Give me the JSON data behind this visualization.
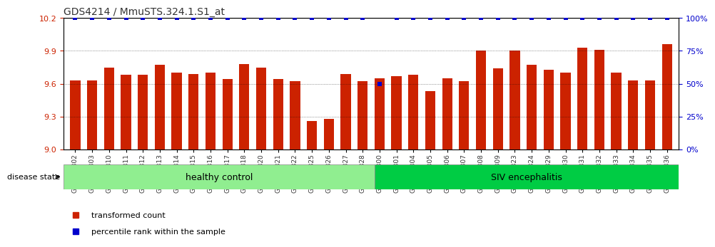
{
  "title": "GDS4214 / MmuSTS.324.1.S1_at",
  "samples": [
    "GSM347802",
    "GSM347803",
    "GSM347810",
    "GSM347811",
    "GSM347812",
    "GSM347813",
    "GSM347814",
    "GSM347815",
    "GSM347816",
    "GSM347817",
    "GSM347818",
    "GSM347820",
    "GSM347821",
    "GSM347822",
    "GSM347825",
    "GSM347826",
    "GSM347827",
    "GSM347828",
    "GSM347800",
    "GSM347801",
    "GSM347804",
    "GSM347805",
    "GSM347806",
    "GSM347807",
    "GSM347808",
    "GSM347809",
    "GSM347823",
    "GSM347824",
    "GSM347829",
    "GSM347830",
    "GSM347831",
    "GSM347832",
    "GSM347833",
    "GSM347834",
    "GSM347835",
    "GSM347836"
  ],
  "bar_values": [
    9.63,
    9.63,
    9.75,
    9.68,
    9.68,
    9.77,
    9.7,
    9.69,
    9.7,
    9.64,
    9.78,
    9.75,
    9.64,
    9.62,
    9.26,
    9.28,
    9.69,
    9.62,
    9.65,
    9.67,
    9.68,
    9.53,
    9.65,
    9.62,
    9.9,
    9.74,
    9.9,
    9.77,
    9.73,
    9.7,
    9.93,
    9.91,
    9.7,
    9.63,
    9.63,
    9.96
  ],
  "percentile_values": [
    100,
    100,
    100,
    100,
    100,
    100,
    100,
    100,
    100,
    100,
    100,
    100,
    100,
    100,
    100,
    100,
    100,
    100,
    50,
    100,
    100,
    100,
    100,
    100,
    100,
    100,
    100,
    100,
    100,
    100,
    100,
    100,
    100,
    100,
    100,
    100
  ],
  "healthy_control_count": 18,
  "ylim_left": [
    9.0,
    10.2
  ],
  "ylim_right": [
    0,
    100
  ],
  "yticks_left": [
    9.0,
    9.3,
    9.6,
    9.9,
    10.2
  ],
  "yticks_right": [
    0,
    25,
    50,
    75,
    100
  ],
  "bar_color": "#cc2200",
  "percentile_color": "#0000cc",
  "healthy_color": "#90ee90",
  "siv_color": "#00cc44",
  "title_color": "#333333",
  "axis_label_color_left": "#cc2200",
  "axis_label_color_right": "#0000cc",
  "legend_items": [
    {
      "label": "transformed count",
      "color": "#cc2200",
      "marker": "s"
    },
    {
      "label": "percentile rank within the sample",
      "color": "#0000cc",
      "marker": "s"
    }
  ],
  "disease_state_label": "disease state",
  "group1_label": "healthy control",
  "group2_label": "SIV encephalitis"
}
